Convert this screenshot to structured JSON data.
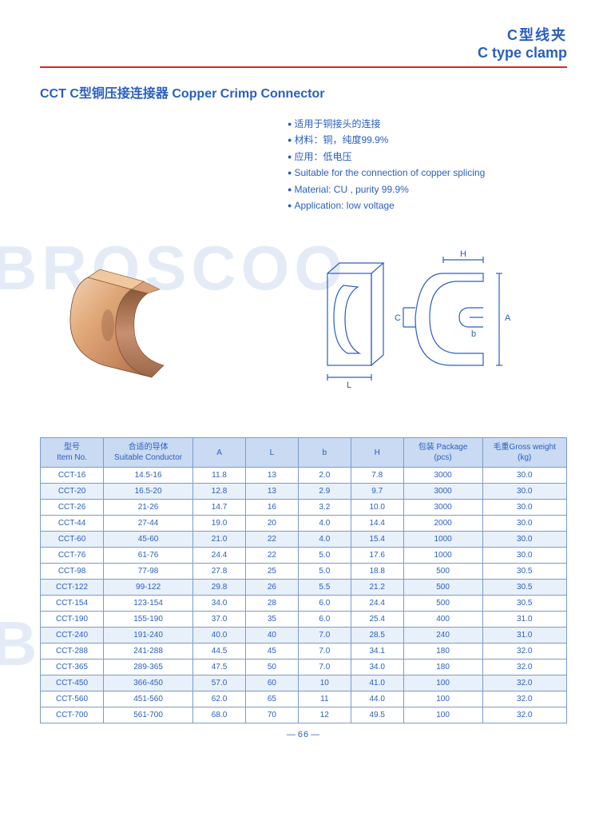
{
  "header": {
    "title_cn": "C型线夹",
    "title_en": "C type clamp"
  },
  "product": {
    "title": "CCT C型铜压接连接器 Copper Crimp Connector",
    "features_cn": [
      "适用于铜接头的连接",
      "材料：铜，纯度99.9%",
      "应用：低电压"
    ],
    "features_en": [
      "Suitable for the connection of copper splicing",
      "Material: CU , purity 99.9%",
      "Application: low voltage"
    ]
  },
  "diagram_labels": {
    "H": "H",
    "A": "A",
    "b": "b",
    "C": "C",
    "L": "L"
  },
  "watermark": "BROSCOO",
  "table": {
    "columns": [
      {
        "cn": "型号",
        "en": "Item No."
      },
      {
        "cn": "合适的导体",
        "en": "Suitable Conductor"
      },
      {
        "cn": "",
        "en": "A"
      },
      {
        "cn": "",
        "en": "L"
      },
      {
        "cn": "",
        "en": "b"
      },
      {
        "cn": "",
        "en": "H"
      },
      {
        "cn": "包装 Package",
        "en": "(pcs)"
      },
      {
        "cn": "毛重Gross weight",
        "en": "(kg)"
      }
    ],
    "rows": [
      [
        "CCT-16",
        "14.5-16",
        "11.8",
        "13",
        "2.0",
        "7.8",
        "3000",
        "30.0"
      ],
      [
        "CCT-20",
        "16.5-20",
        "12.8",
        "13",
        "2.9",
        "9.7",
        "3000",
        "30.0"
      ],
      [
        "CCT-26",
        "21-26",
        "14.7",
        "16",
        "3.2",
        "10.0",
        "3000",
        "30.0"
      ],
      [
        "CCT-44",
        "27-44",
        "19.0",
        "20",
        "4.0",
        "14.4",
        "2000",
        "30.0"
      ],
      [
        "CCT-60",
        "45-60",
        "21.0",
        "22",
        "4.0",
        "15.4",
        "1000",
        "30.0"
      ],
      [
        "CCT-76",
        "61-76",
        "24.4",
        "22",
        "5.0",
        "17.6",
        "1000",
        "30.0"
      ],
      [
        "CCT-98",
        "77-98",
        "27.8",
        "25",
        "5.0",
        "18.8",
        "500",
        "30.5"
      ],
      [
        "CCT-122",
        "99-122",
        "29.8",
        "26",
        "5.5",
        "21.2",
        "500",
        "30.5"
      ],
      [
        "CCT-154",
        "123-154",
        "34.0",
        "28",
        "6.0",
        "24.4",
        "500",
        "30.5"
      ],
      [
        "CCT-190",
        "155-190",
        "37.0",
        "35",
        "6.0",
        "25.4",
        "400",
        "31.0"
      ],
      [
        "CCT-240",
        "191-240",
        "40.0",
        "40",
        "7.0",
        "28.5",
        "240",
        "31.0"
      ],
      [
        "CCT-288",
        "241-288",
        "44.5",
        "45",
        "7.0",
        "34.1",
        "180",
        "32.0"
      ],
      [
        "CCT-365",
        "289-365",
        "47.5",
        "50",
        "7.0",
        "34.0",
        "180",
        "32.0"
      ],
      [
        "CCT-450",
        "366-450",
        "57.0",
        "60",
        "10",
        "41.0",
        "100",
        "32.0"
      ],
      [
        "CCT-560",
        "451-560",
        "62.0",
        "65",
        "11",
        "44.0",
        "100",
        "32.0"
      ],
      [
        "CCT-700",
        "561-700",
        "68.0",
        "70",
        "12",
        "49.5",
        "100",
        "32.0"
      ]
    ],
    "col_widths": [
      "12%",
      "17%",
      "10%",
      "10%",
      "10%",
      "10%",
      "15%",
      "16%"
    ]
  },
  "page_number": "66",
  "colors": {
    "primary": "#2a5fbf",
    "red_line": "#c73020",
    "th_bg": "#c9daf2",
    "border": "#7a9cc9",
    "copper_light": "#e8b896",
    "copper_dark": "#b87850",
    "copper_shadow": "#8a5a3a"
  }
}
